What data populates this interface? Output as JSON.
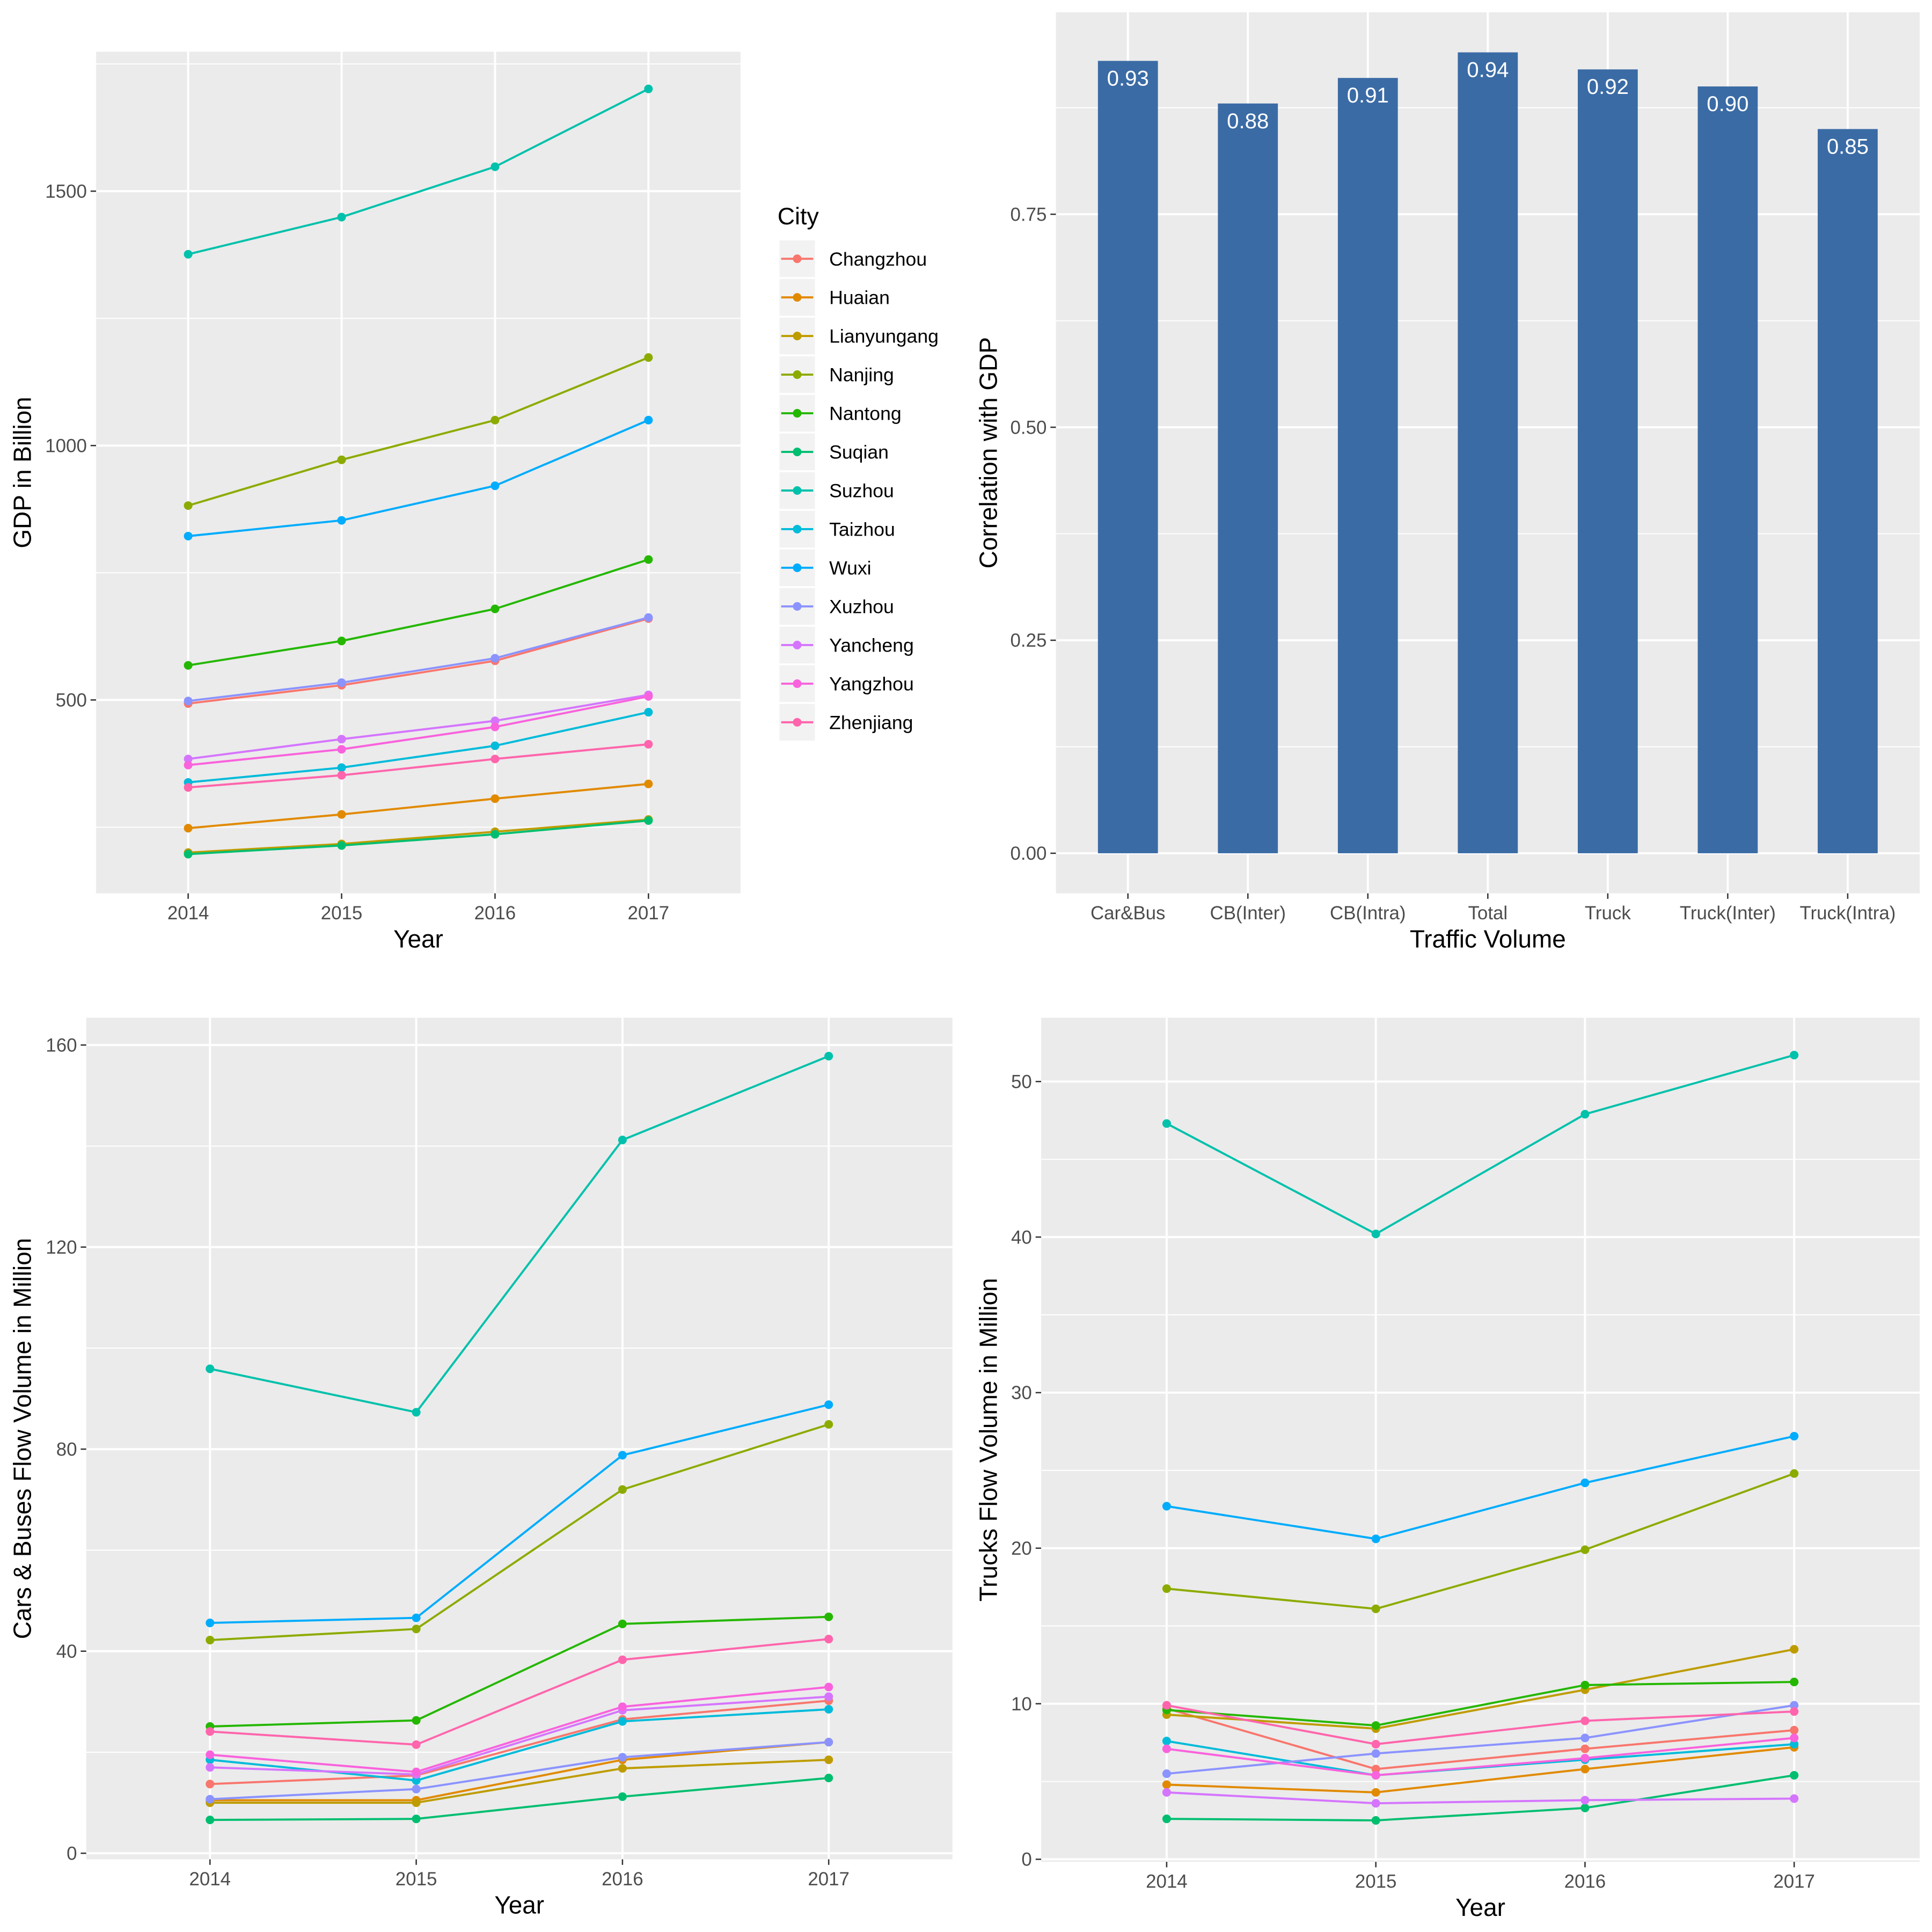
{
  "chart_data": [
    {
      "type": "line",
      "title": "",
      "xlabel": "Year",
      "ylabel": "GDP in Billion",
      "categories": [
        "2014",
        "2015",
        "2016",
        "2017"
      ],
      "yticks": [
        500,
        1000,
        1500
      ],
      "ytick_labels": [
        "500",
        "1000",
        "1500"
      ],
      "ylim": [
        120,
        1774
      ],
      "grid": true,
      "legend": {
        "title": "City",
        "position": "right"
      },
      "series": [
        {
          "name": "Changzhou",
          "color": "#F8766D",
          "values": [
            493,
            529,
            577,
            660
          ]
        },
        {
          "name": "Huaian",
          "color": "#E18A00",
          "values": [
            248,
            275,
            306,
            335
          ]
        },
        {
          "name": "Lianyungang",
          "color": "#BE9C00",
          "values": [
            200,
            217,
            241,
            265
          ]
        },
        {
          "name": "Nanjing",
          "color": "#8CAB00",
          "values": [
            882,
            972,
            1050,
            1173
          ]
        },
        {
          "name": "Nantong",
          "color": "#24B700",
          "values": [
            568,
            616,
            679,
            776
          ]
        },
        {
          "name": "Suqian",
          "color": "#00BE70",
          "values": [
            197,
            214,
            236,
            263
          ]
        },
        {
          "name": "Suzhou",
          "color": "#00C1AB",
          "values": [
            1376,
            1449,
            1548,
            1701
          ]
        },
        {
          "name": "Taizhou",
          "color": "#00BBDA",
          "values": [
            338,
            367,
            410,
            476
          ]
        },
        {
          "name": "Wuxi",
          "color": "#00ACFC",
          "values": [
            822,
            853,
            921,
            1050
          ]
        },
        {
          "name": "Xuzhou",
          "color": "#8B93FF",
          "values": [
            498,
            534,
            582,
            662
          ]
        },
        {
          "name": "Yancheng",
          "color": "#D575FE",
          "values": [
            384,
            423,
            459,
            510
          ]
        },
        {
          "name": "Yangzhou",
          "color": "#F962DD",
          "values": [
            372,
            403,
            447,
            507
          ]
        },
        {
          "name": "Zhenjiang",
          "color": "#FF65AC",
          "values": [
            328,
            352,
            384,
            413
          ]
        }
      ]
    },
    {
      "type": "bar",
      "title": "",
      "xlabel": "Traffic Volume",
      "ylabel": "Correlation with GDP",
      "categories": [
        "Car&Bus",
        "CB(Inter)",
        "CB(Intra)",
        "Total",
        "Truck",
        "Truck(Inter)",
        "Truck(Intra)"
      ],
      "values": [
        0.93,
        0.88,
        0.91,
        0.94,
        0.92,
        0.9,
        0.85
      ],
      "value_labels": [
        "0.93",
        "0.88",
        "0.91",
        "0.94",
        "0.92",
        "0.90",
        "0.85"
      ],
      "yticks": [
        0,
        0.25,
        0.5,
        0.75
      ],
      "ytick_labels": [
        "0.00",
        "0.25",
        "0.50",
        "0.75"
      ],
      "ylim": [
        -0.047,
        0.987
      ],
      "grid": true,
      "bar_color": "#3A6BA5",
      "label_color": "#FFFFFF"
    },
    {
      "type": "line",
      "title": "",
      "xlabel": "Year",
      "ylabel": "Cars & Buses Flow Volume in Million",
      "categories": [
        "2014",
        "2015",
        "2016",
        "2017"
      ],
      "yticks": [
        0,
        40,
        80,
        120,
        160
      ],
      "ytick_labels": [
        "0",
        "40",
        "80",
        "120",
        "160"
      ],
      "ylim": [
        -1.2,
        165.4
      ],
      "grid": true,
      "series": [
        {
          "color": "#F8766D",
          "values": [
            13.7,
            15.4,
            26.5,
            30.2
          ]
        },
        {
          "color": "#E18A00",
          "values": [
            10.5,
            10.5,
            18.5,
            22.0
          ]
        },
        {
          "color": "#BE9C00",
          "values": [
            10.0,
            10.0,
            16.8,
            18.5
          ]
        },
        {
          "color": "#8CAB00",
          "values": [
            42.2,
            44.4,
            72.0,
            84.9
          ]
        },
        {
          "color": "#24B700",
          "values": [
            25.1,
            26.3,
            45.4,
            46.8
          ]
        },
        {
          "color": "#00BE70",
          "values": [
            6.6,
            6.8,
            11.2,
            14.9
          ]
        },
        {
          "color": "#00C1AB",
          "values": [
            95.9,
            87.3,
            141.2,
            157.8
          ]
        },
        {
          "color": "#00BBDA",
          "values": [
            18.5,
            14.4,
            26.1,
            28.5
          ]
        },
        {
          "color": "#00ACFC",
          "values": [
            45.6,
            46.6,
            78.8,
            88.8
          ]
        },
        {
          "color": "#8B93FF",
          "values": [
            10.7,
            12.7,
            19.0,
            22.0
          ]
        },
        {
          "color": "#D575FE",
          "values": [
            17.0,
            15.6,
            28.3,
            31.0
          ]
        },
        {
          "color": "#F962DD",
          "values": [
            19.5,
            16.1,
            29.0,
            32.9
          ]
        },
        {
          "color": "#FF65AC",
          "values": [
            24.1,
            21.5,
            38.3,
            42.4
          ]
        }
      ]
    },
    {
      "type": "line",
      "title": "",
      "xlabel": "Year",
      "ylabel": "Trucks Flow Volume in Million",
      "categories": [
        "2014",
        "2015",
        "2016",
        "2017"
      ],
      "yticks": [
        0,
        10,
        20,
        30,
        40,
        50
      ],
      "ytick_labels": [
        "0",
        "10",
        "20",
        "30",
        "40",
        "50"
      ],
      "ylim": [
        -0.16,
        54.1
      ],
      "grid": true,
      "series": [
        {
          "color": "#F8766D",
          "values": [
            9.7,
            5.8,
            7.1,
            8.3
          ]
        },
        {
          "color": "#E18A00",
          "values": [
            4.8,
            4.3,
            5.8,
            7.2
          ]
        },
        {
          "color": "#BE9C00",
          "values": [
            9.3,
            8.4,
            10.9,
            13.5
          ]
        },
        {
          "color": "#8CAB00",
          "values": [
            17.4,
            16.1,
            19.9,
            24.8
          ]
        },
        {
          "color": "#24B700",
          "values": [
            9.6,
            8.6,
            11.2,
            11.4
          ]
        },
        {
          "color": "#00BE70",
          "values": [
            2.6,
            2.5,
            3.3,
            5.4
          ]
        },
        {
          "color": "#00C1AB",
          "values": [
            47.3,
            40.2,
            47.9,
            51.7
          ]
        },
        {
          "color": "#00BBDA",
          "values": [
            7.6,
            5.4,
            6.4,
            7.4
          ]
        },
        {
          "color": "#00ACFC",
          "values": [
            22.7,
            20.6,
            24.2,
            27.2
          ]
        },
        {
          "color": "#8B93FF",
          "values": [
            5.5,
            6.8,
            7.8,
            9.9
          ]
        },
        {
          "color": "#D575FE",
          "values": [
            4.3,
            3.6,
            3.8,
            3.9
          ]
        },
        {
          "color": "#F962DD",
          "values": [
            7.1,
            5.4,
            6.5,
            7.8
          ]
        },
        {
          "color": "#FF65AC",
          "values": [
            9.9,
            7.4,
            8.9,
            9.5
          ]
        }
      ]
    }
  ]
}
